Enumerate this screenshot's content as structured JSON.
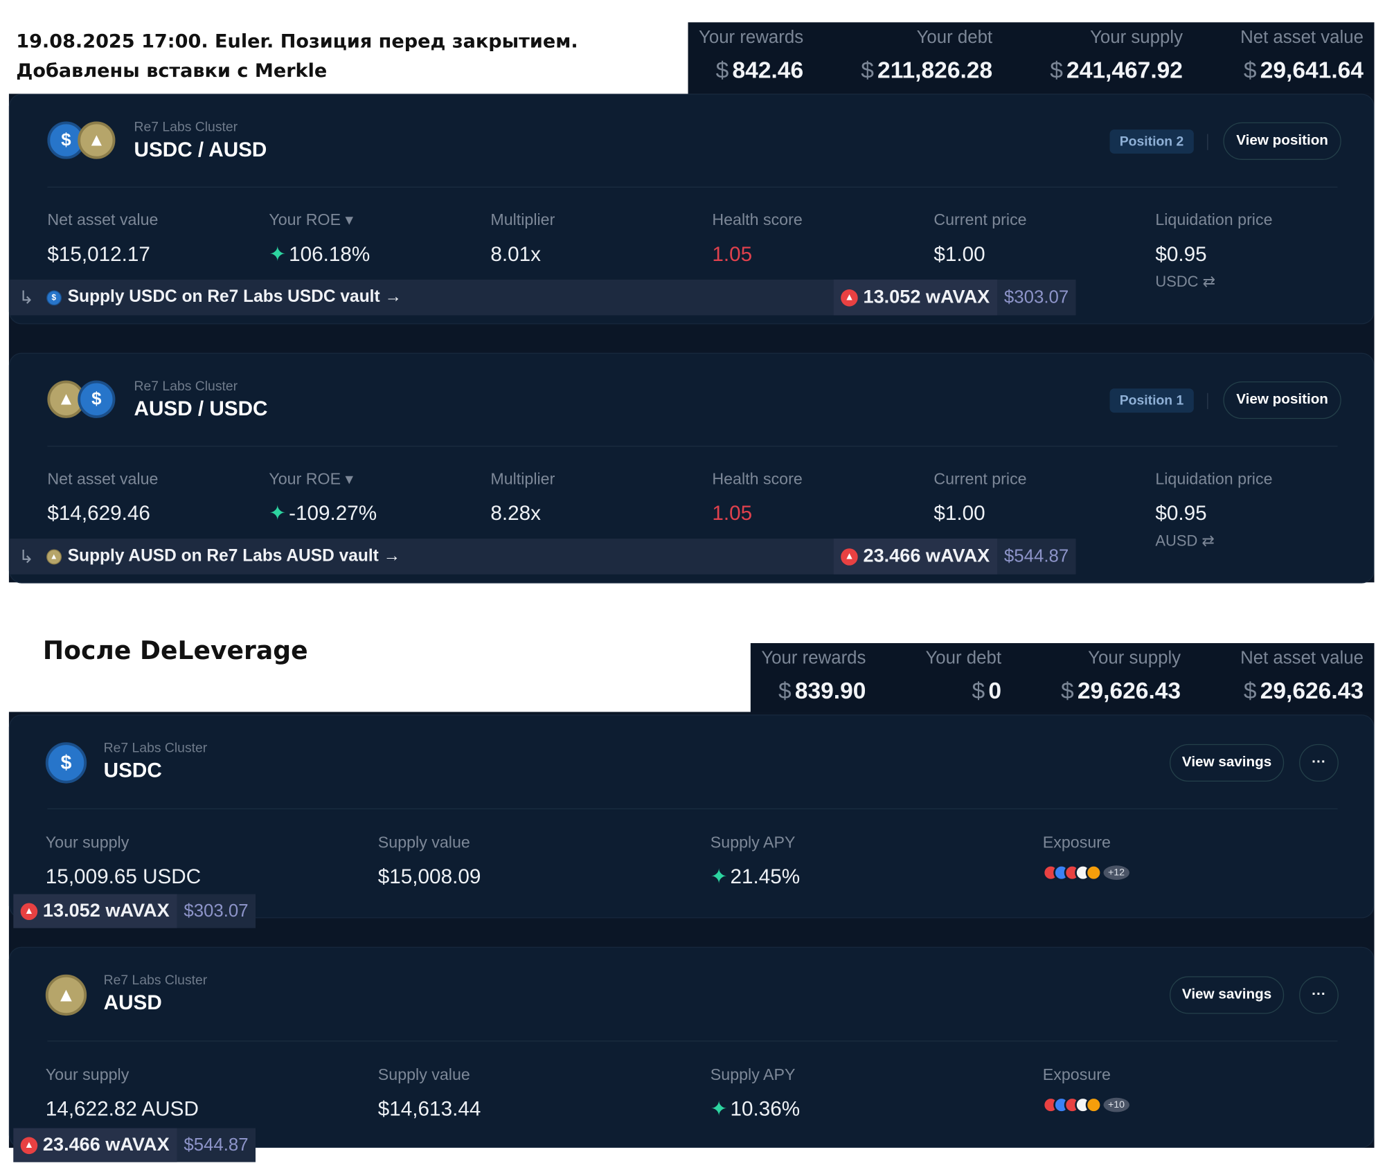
{
  "note": {
    "line1": "19.08.2025 17:00. Euler. Позиция перед закрытием.",
    "line2": "Добавлены вставки с Merkle"
  },
  "summary_before": [
    {
      "label": "Your rewards",
      "value": "842.46"
    },
    {
      "label": "Your debt",
      "value": "211,826.28"
    },
    {
      "label": "Your supply",
      "value": "241,467.92"
    },
    {
      "label": "Net asset value",
      "value": "29,641.64"
    }
  ],
  "currency": "$",
  "positions": [
    {
      "cluster": "Re7 Labs Cluster",
      "pair": "USDC / AUSD",
      "badge": "Position 2",
      "view": "View position",
      "nav": "$15,012.17",
      "roe": "106.18%",
      "multiplier": "8.01x",
      "health": "1.05",
      "price": "$1.00",
      "liq": "$0.95",
      "liq_unit": "USDC ⇄",
      "banner": "Supply USDC on Re7 Labs USDC vault →",
      "reward": "13.052 wAVAX",
      "reward_usd": "$303.07"
    },
    {
      "cluster": "Re7 Labs Cluster",
      "pair": "AUSD / USDC",
      "badge": "Position 1",
      "view": "View position",
      "nav": "$14,629.46",
      "roe": "-109.27%",
      "multiplier": "8.28x",
      "health": "1.05",
      "price": "$1.00",
      "liq": "$0.95",
      "liq_unit": "AUSD ⇄",
      "banner": "Supply AUSD on Re7 Labs AUSD vault →",
      "reward": "23.466 wAVAX",
      "reward_usd": "$544.87"
    }
  ],
  "pos_labels": {
    "nav": "Net asset value",
    "roe": "Your ROE ▾",
    "multiplier": "Multiplier",
    "health": "Health score",
    "price": "Current price",
    "liq": "Liquidation price"
  },
  "heading_after": "После DeLeverage",
  "summary_after": [
    {
      "label": "Your rewards",
      "value": "839.90"
    },
    {
      "label": "Your debt",
      "value": "0"
    },
    {
      "label": "Your supply",
      "value": "29,626.43"
    },
    {
      "label": "Net asset value",
      "value": "29,626.43"
    }
  ],
  "savings": [
    {
      "cluster": "Re7 Labs Cluster",
      "asset": "USDC",
      "view": "View savings",
      "more": "···",
      "supply": "15,009.65 USDC",
      "value": "$15,008.09",
      "apy": "21.45%",
      "exposure_more": "+12",
      "reward": "13.052 wAVAX",
      "reward_usd": "$303.07"
    },
    {
      "cluster": "Re7 Labs Cluster",
      "asset": "AUSD",
      "view": "View savings",
      "more": "···",
      "supply": "14,622.82 AUSD",
      "value": "$14,613.44",
      "apy": "10.36%",
      "exposure_more": "+10",
      "reward": "23.466 wAVAX",
      "reward_usd": "$544.87"
    }
  ],
  "sav_labels": {
    "supply": "Your supply",
    "value": "Supply value",
    "apy": "Supply APY",
    "exposure": "Exposure"
  },
  "colors": {
    "bg": "#0b1626",
    "card": "#0d1d31",
    "health": "#e0414d",
    "apy": "#2dd4a0"
  }
}
